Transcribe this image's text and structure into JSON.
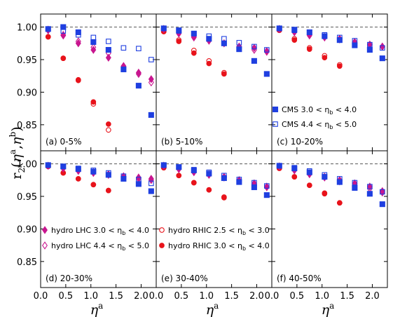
{
  "chart_data": {
    "type": "scatter",
    "xlim": [
      0,
      2.3
    ],
    "ylim": [
      0.81,
      1.02
    ],
    "x_ticks": [
      "0.0",
      "0.5",
      "1.0",
      "1.5",
      "2.0"
    ],
    "y_ticks": [
      "0.85",
      "0.90",
      "0.95",
      "1.00"
    ],
    "y_tick_values": [
      0.85,
      0.9,
      0.95,
      1.0
    ],
    "x_tick_values": [
      0.0,
      0.5,
      1.0,
      1.5,
      2.0
    ],
    "reference_line": 1.0,
    "ylabel": {
      "base": "r",
      "sub": "2",
      "open": "(",
      "a": "η",
      "asup": "a",
      "comma": ",",
      "b": "η",
      "bsup": "b",
      "close": ")"
    },
    "xlabel": {
      "base": "η",
      "sup": "a"
    },
    "legend": [
      {
        "panel": 2,
        "text": "CMS 3.0 < η",
        "sub": "b",
        "tail": " < 4.0"
      },
      {
        "panel": 2,
        "text": "CMS 4.4 < η",
        "sub": "b",
        "tail": " < 5.0"
      },
      {
        "panel": 3,
        "text": "hydro LHC 3.0 < η",
        "sub": "b",
        "tail": " < 4.0"
      },
      {
        "panel": 3,
        "text": "hydro LHC 4.4 < η",
        "sub": "b",
        "tail": " < 5.0"
      },
      {
        "panel": 4,
        "text": "hydro RHIC 2.5 < η",
        "sub": "b",
        "tail": " < 3.0"
      },
      {
        "panel": 4,
        "text": "hydro RHIC 3.0 < η",
        "sub": "b",
        "tail": " < 4.0"
      }
    ],
    "series_meta": [
      {
        "key": "cms1",
        "color": "#1f3fe0",
        "marker": "square-filled"
      },
      {
        "key": "cms2",
        "color": "#1f3fe0",
        "marker": "square-open"
      },
      {
        "key": "lhc1",
        "color": "#c8168f",
        "marker": "diamond-filled"
      },
      {
        "key": "lhc2",
        "color": "#c8168f",
        "marker": "diamond-open"
      },
      {
        "key": "rhic1",
        "color": "#e8131b",
        "marker": "circle-open"
      },
      {
        "key": "rhic2",
        "color": "#e8131b",
        "marker": "circle-filled"
      }
    ],
    "panels": [
      {
        "label": "(a) 0-5%",
        "series": {
          "cms1": {
            "x": [
              0.15,
              0.45,
              0.75,
              1.05,
              1.35,
              1.65,
              1.95,
              2.2
            ],
            "y": [
              0.997,
              1.0,
              0.992,
              0.977,
              0.965,
              0.935,
              0.91,
              0.865
            ]
          },
          "cms2": {
            "x": [
              0.15,
              0.45,
              0.75,
              1.05,
              1.35,
              1.65,
              1.95,
              2.2
            ],
            "y": [
              0.997,
              0.994,
              0.988,
              0.984,
              0.978,
              0.968,
              0.967,
              0.95
            ]
          },
          "lhc1": {
            "x": [
              0.15,
              0.45,
              0.75,
              1.05,
              1.35,
              1.65,
              1.95,
              2.2
            ],
            "y": [
              0.996,
              0.987,
              0.975,
              0.965,
              0.953,
              0.94,
              0.93,
              0.92
            ]
          },
          "lhc2": {
            "x": [
              0.15,
              0.45,
              0.75,
              1.05,
              1.35,
              1.65,
              1.95,
              2.2
            ],
            "y": [
              0.995,
              0.988,
              0.978,
              0.969,
              0.96,
              0.94,
              0.928,
              0.915
            ]
          },
          "rhic1": {
            "x": [
              0.15,
              0.45,
              0.75,
              1.05,
              1.35
            ],
            "y": [
              0.985,
              0.952,
              0.918,
              0.882,
              0.842
            ]
          },
          "rhic2": {
            "x": [
              0.15,
              0.45,
              0.75,
              1.05,
              1.35
            ],
            "y": [
              0.985,
              0.952,
              0.919,
              0.885,
              0.851
            ]
          }
        }
      },
      {
        "label": "(b) 5-10%",
        "series": {
          "cms1": {
            "x": [
              0.15,
              0.45,
              0.75,
              1.05,
              1.35,
              1.65,
              1.95,
              2.2
            ],
            "y": [
              0.998,
              0.995,
              0.99,
              0.982,
              0.975,
              0.966,
              0.948,
              0.928
            ]
          },
          "cms2": {
            "x": [
              0.15,
              0.45,
              0.75,
              1.05,
              1.35,
              1.65,
              1.95,
              2.2
            ],
            "y": [
              0.998,
              0.994,
              0.99,
              0.986,
              0.982,
              0.976,
              0.97,
              0.965
            ]
          },
          "lhc1": {
            "x": [
              0.15,
              0.45,
              0.75,
              1.05,
              1.35,
              1.65,
              1.95,
              2.2
            ],
            "y": [
              0.997,
              0.991,
              0.985,
              0.98,
              0.975,
              0.97,
              0.968,
              0.963
            ]
          },
          "lhc2": {
            "x": [
              0.15,
              0.45,
              0.75,
              1.05,
              1.35,
              1.65,
              1.95,
              2.2
            ],
            "y": [
              0.997,
              0.99,
              0.984,
              0.979,
              0.975,
              0.97,
              0.965,
              0.962
            ]
          },
          "rhic1": {
            "x": [
              0.15,
              0.45,
              0.75,
              1.05,
              1.35
            ],
            "y": [
              0.993,
              0.98,
              0.964,
              0.948,
              0.93
            ]
          },
          "rhic2": {
            "x": [
              0.15,
              0.45,
              0.75,
              1.05,
              1.35
            ],
            "y": [
              0.993,
              0.978,
              0.96,
              0.944,
              0.928
            ]
          }
        }
      },
      {
        "label": "(c) 10-20%",
        "series": {
          "cms1": {
            "x": [
              0.15,
              0.45,
              0.75,
              1.05,
              1.35,
              1.65,
              1.95,
              2.2
            ],
            "y": [
              0.998,
              0.996,
              0.992,
              0.986,
              0.98,
              0.972,
              0.965,
              0.952
            ]
          },
          "cms2": {
            "x": [
              0.15,
              0.45,
              0.75,
              1.05,
              1.35,
              1.65,
              1.95,
              2.2
            ],
            "y": [
              0.998,
              0.995,
              0.992,
              0.988,
              0.984,
              0.979,
              0.973,
              0.968
            ]
          },
          "lhc1": {
            "x": [
              0.15,
              0.45,
              0.75,
              1.05,
              1.35,
              1.65,
              1.95,
              2.2
            ],
            "y": [
              0.997,
              0.993,
              0.988,
              0.985,
              0.982,
              0.977,
              0.973,
              0.97
            ]
          },
          "lhc2": {
            "x": [
              0.15,
              0.45,
              0.75,
              1.05,
              1.35,
              1.65,
              1.95,
              2.2
            ],
            "y": [
              0.997,
              0.992,
              0.987,
              0.984,
              0.981,
              0.977,
              0.973,
              0.97
            ]
          },
          "rhic1": {
            "x": [
              0.15,
              0.45,
              0.75,
              1.05,
              1.35
            ],
            "y": [
              0.995,
              0.982,
              0.968,
              0.956,
              0.942
            ]
          },
          "rhic2": {
            "x": [
              0.15,
              0.45,
              0.75,
              1.05,
              1.35
            ],
            "y": [
              0.995,
              0.98,
              0.966,
              0.953,
              0.94
            ]
          }
        }
      },
      {
        "label": "(d) 20-30%",
        "series": {
          "cms1": {
            "x": [
              0.15,
              0.45,
              0.75,
              1.05,
              1.35,
              1.65,
              1.95,
              2.2
            ],
            "y": [
              0.998,
              0.996,
              0.992,
              0.988,
              0.983,
              0.977,
              0.969,
              0.958
            ]
          },
          "cms2": {
            "x": [
              0.15,
              0.45,
              0.75,
              1.05,
              1.35,
              1.65,
              1.95,
              2.2
            ],
            "y": [
              0.998,
              0.996,
              0.993,
              0.99,
              0.986,
              0.981,
              0.976,
              0.97
            ]
          },
          "lhc1": {
            "x": [
              0.15,
              0.45,
              0.75,
              1.05,
              1.35,
              1.65,
              1.95,
              2.2
            ],
            "y": [
              0.997,
              0.994,
              0.99,
              0.987,
              0.984,
              0.981,
              0.979,
              0.977
            ]
          },
          "lhc2": {
            "x": [
              0.15,
              0.45,
              0.75,
              1.05,
              1.35,
              1.65,
              1.95,
              2.2
            ],
            "y": [
              0.997,
              0.993,
              0.989,
              0.986,
              0.983,
              0.98,
              0.977,
              0.975
            ]
          },
          "rhic1": {
            "x": [
              0.15,
              0.45,
              0.75,
              1.05,
              1.35
            ],
            "y": [
              0.996,
              0.986,
              0.977,
              0.968,
              0.959
            ]
          },
          "rhic2": {
            "x": [
              0.15,
              0.45,
              0.75,
              1.05,
              1.35
            ],
            "y": [
              0.996,
              0.986,
              0.977,
              0.968,
              0.959
            ]
          }
        }
      },
      {
        "label": "(e) 30-40%",
        "series": {
          "cms1": {
            "x": [
              0.15,
              0.45,
              0.75,
              1.05,
              1.35,
              1.65,
              1.95,
              2.2
            ],
            "y": [
              0.998,
              0.995,
              0.99,
              0.985,
              0.978,
              0.972,
              0.964,
              0.952
            ]
          },
          "cms2": {
            "x": [
              0.15,
              0.45,
              0.75,
              1.05,
              1.35,
              1.65,
              1.95,
              2.2
            ],
            "y": [
              0.998,
              0.995,
              0.991,
              0.987,
              0.982,
              0.976,
              0.971,
              0.966
            ]
          },
          "lhc1": {
            "x": [
              0.15,
              0.45,
              0.75,
              1.05,
              1.35,
              1.65,
              1.95,
              2.2
            ],
            "y": [
              0.997,
              0.992,
              0.988,
              0.984,
              0.98,
              0.975,
              0.97,
              0.965
            ]
          },
          "lhc2": {
            "x": [
              0.15,
              0.45,
              0.75,
              1.05,
              1.35,
              1.65,
              1.95,
              2.2
            ],
            "y": [
              0.997,
              0.992,
              0.987,
              0.983,
              0.979,
              0.974,
              0.969,
              0.964
            ]
          },
          "rhic1": {
            "x": [
              0.15,
              0.45,
              0.75,
              1.05,
              1.35
            ],
            "y": [
              0.994,
              0.982,
              0.971,
              0.96,
              0.949
            ]
          },
          "rhic2": {
            "x": [
              0.15,
              0.45,
              0.75,
              1.05,
              1.35
            ],
            "y": [
              0.994,
              0.982,
              0.971,
              0.96,
              0.948
            ]
          }
        }
      },
      {
        "label": "(f) 40-50%",
        "series": {
          "cms1": {
            "x": [
              0.15,
              0.45,
              0.75,
              1.05,
              1.35,
              1.65,
              1.95,
              2.2
            ],
            "y": [
              0.997,
              0.993,
              0.987,
              0.98,
              0.972,
              0.963,
              0.954,
              0.938
            ]
          },
          "cms2": {
            "x": [
              0.15,
              0.45,
              0.75,
              1.05,
              1.35,
              1.65,
              1.95,
              2.2
            ],
            "y": [
              0.997,
              0.994,
              0.989,
              0.983,
              0.977,
              0.971,
              0.965,
              0.957
            ]
          },
          "lhc1": {
            "x": [
              0.15,
              0.45,
              0.75,
              1.05,
              1.35,
              1.65,
              1.95,
              2.2
            ],
            "y": [
              0.996,
              0.991,
              0.985,
              0.98,
              0.975,
              0.97,
              0.965,
              0.958
            ]
          },
          "lhc2": {
            "x": [
              0.15,
              0.45,
              0.75,
              1.05,
              1.35,
              1.65,
              1.95,
              2.2
            ],
            "y": [
              0.996,
              0.99,
              0.984,
              0.979,
              0.973,
              0.968,
              0.962,
              0.956
            ]
          },
          "rhic1": {
            "x": [
              0.15,
              0.45,
              0.75,
              1.05,
              1.35
            ],
            "y": [
              0.993,
              0.98,
              0.967,
              0.955,
              0.94
            ]
          },
          "rhic2": {
            "x": [
              0.15,
              0.45,
              0.75,
              1.05,
              1.35
            ],
            "y": [
              0.993,
              0.98,
              0.967,
              0.954,
              0.94
            ]
          }
        }
      }
    ]
  }
}
